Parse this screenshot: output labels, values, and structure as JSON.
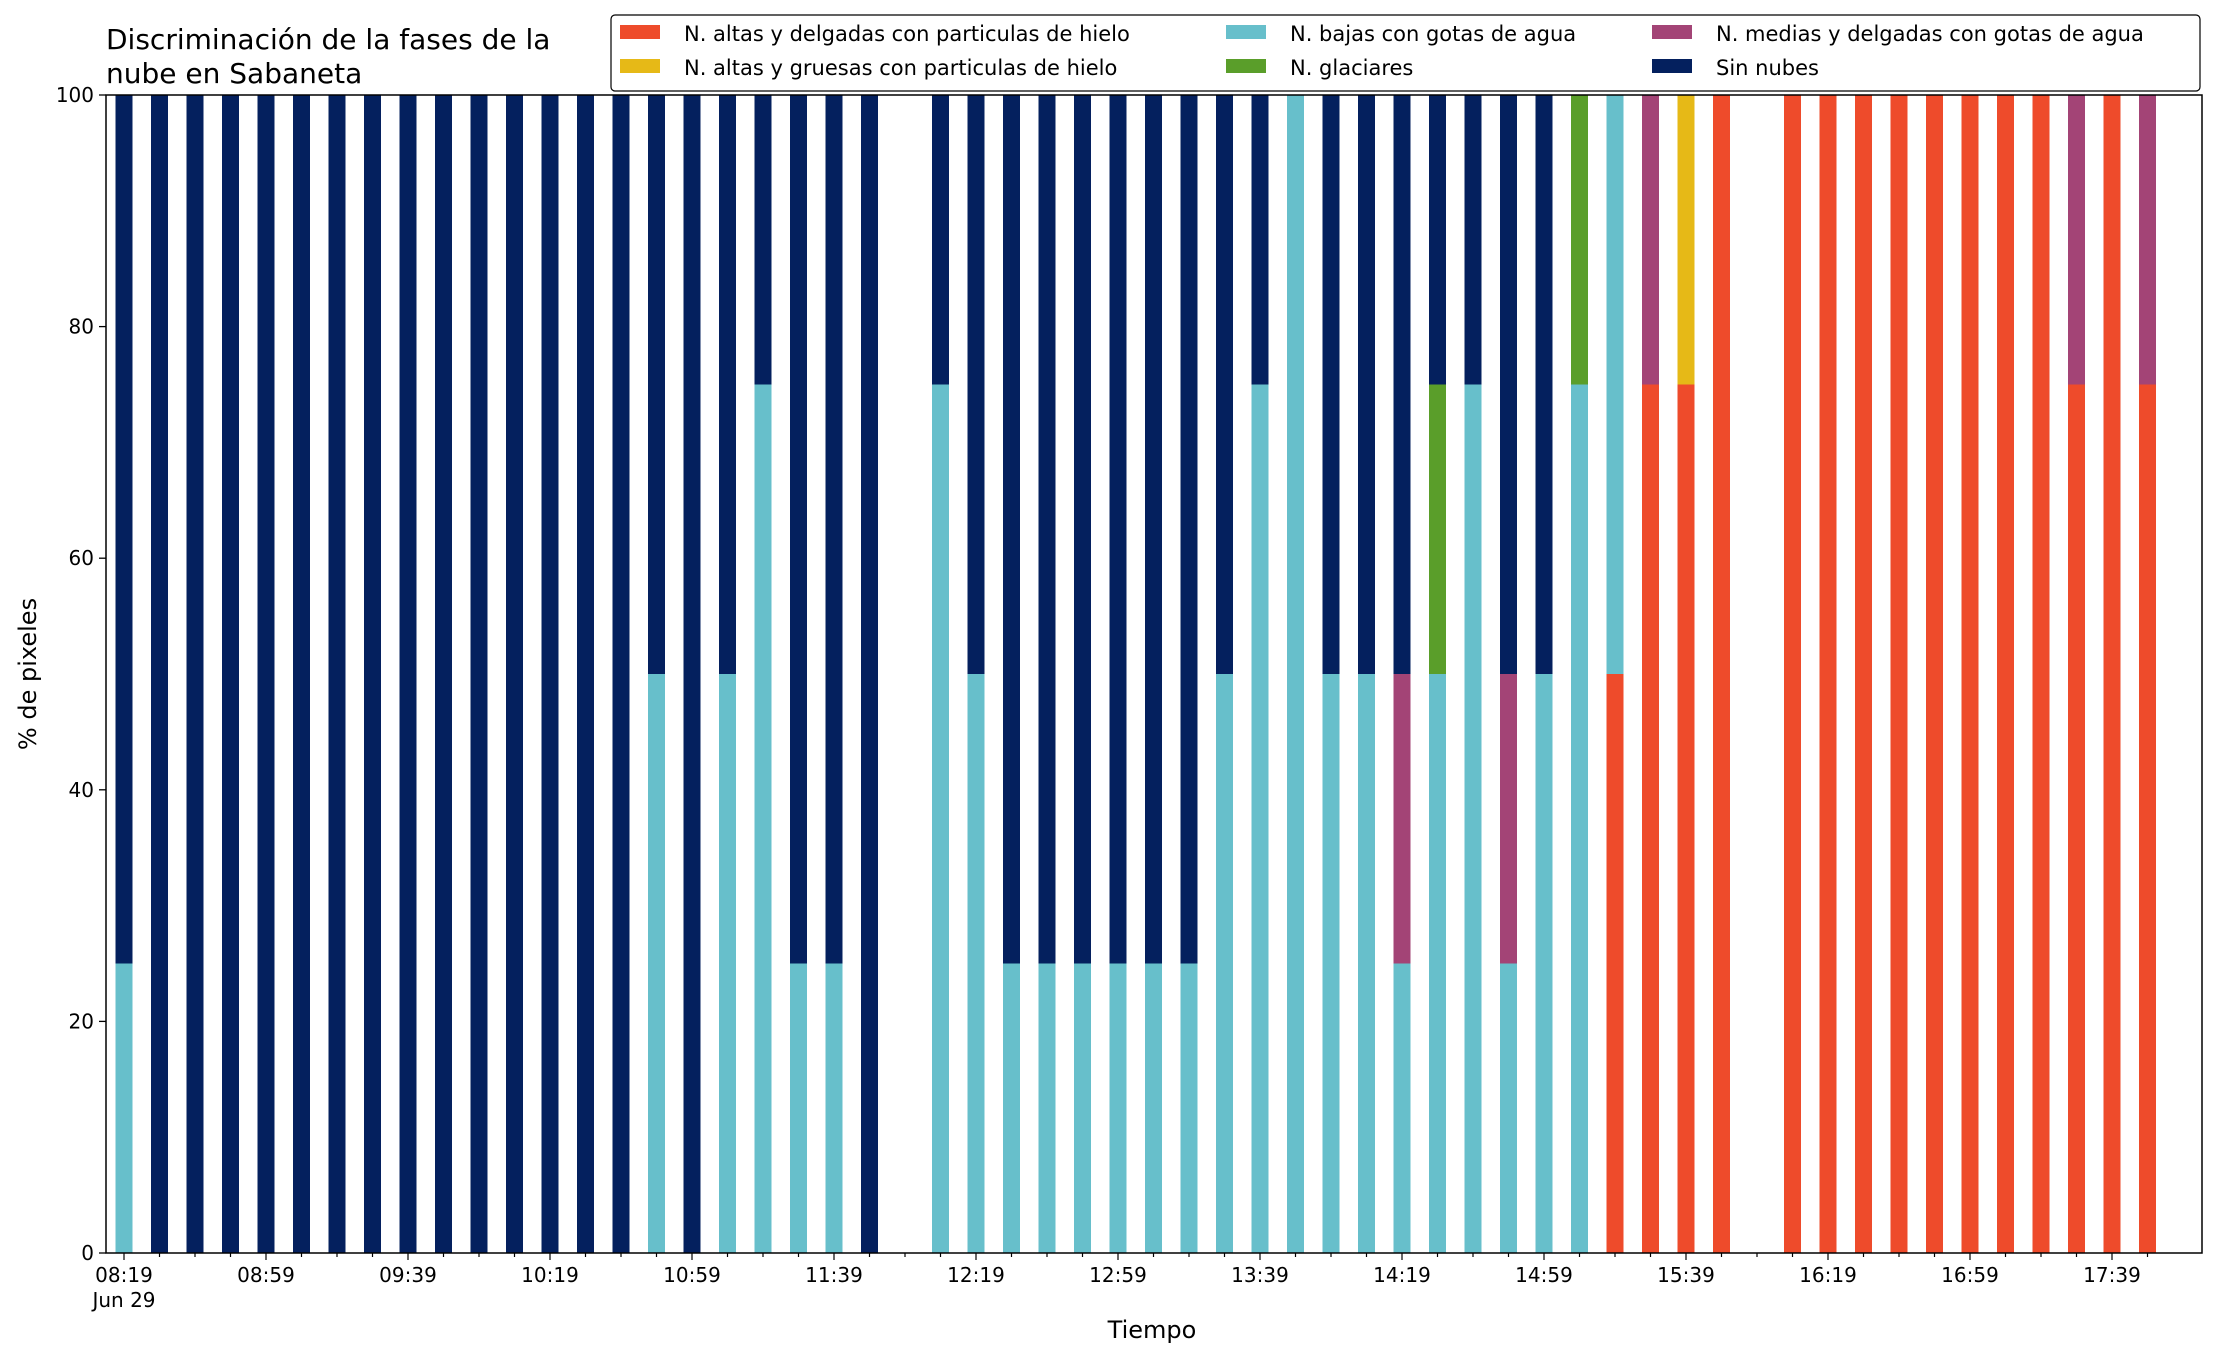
{
  "chart_data": {
    "type": "bar",
    "stacked": true,
    "title_lines": [
      "Discriminación de la fases de la",
      "nube en Sabaneta"
    ],
    "xlabel": "Tiempo",
    "ylabel": "% de pixeles",
    "ylim": [
      0,
      100
    ],
    "yticks": [
      0,
      20,
      40,
      60,
      80,
      100
    ],
    "grid": false,
    "legend_position": "top-right",
    "x_start": "08:19",
    "x_step_minutes": 10,
    "x_count": 58,
    "xtick_labels": [
      {
        "index": 0,
        "label": "08:19",
        "sublabel": "Jun 29"
      },
      {
        "index": 4,
        "label": "08:59"
      },
      {
        "index": 8,
        "label": "09:39"
      },
      {
        "index": 12,
        "label": "10:19"
      },
      {
        "index": 16,
        "label": "10:59"
      },
      {
        "index": 20,
        "label": "11:39"
      },
      {
        "index": 24,
        "label": "12:19"
      },
      {
        "index": 28,
        "label": "12:59"
      },
      {
        "index": 32,
        "label": "13:39"
      },
      {
        "index": 36,
        "label": "14:19"
      },
      {
        "index": 40,
        "label": "14:59"
      },
      {
        "index": 44,
        "label": "15:39"
      },
      {
        "index": 48,
        "label": "16:19"
      },
      {
        "index": 52,
        "label": "16:59"
      },
      {
        "index": 56,
        "label": "17:39"
      }
    ],
    "legend_order": [
      "altas_delgadas",
      "altas_gruesas",
      "bajas",
      "glaciares",
      "medias",
      "sin_nubes"
    ],
    "series": [
      {
        "key": "altas_delgadas",
        "name": "N. altas y delgadas con particulas de hielo",
        "color": "#ee4b2b",
        "values": [
          0,
          0,
          0,
          0,
          0,
          0,
          0,
          0,
          0,
          0,
          0,
          0,
          0,
          0,
          0,
          0,
          0,
          0,
          0,
          0,
          0,
          0,
          0,
          0,
          0,
          0,
          0,
          0,
          0,
          0,
          0,
          0,
          0,
          0,
          0,
          0,
          0,
          0,
          0,
          0,
          0,
          0,
          50,
          75,
          75,
          100,
          null,
          100,
          100,
          100,
          100,
          100,
          100,
          100,
          100,
          75,
          100,
          75
        ]
      },
      {
        "key": "altas_gruesas",
        "name": "N. altas y gruesas con particulas de hielo",
        "color": "#e6b917",
        "values": [
          0,
          0,
          0,
          0,
          0,
          0,
          0,
          0,
          0,
          0,
          0,
          0,
          0,
          0,
          0,
          0,
          0,
          0,
          0,
          0,
          0,
          0,
          0,
          0,
          0,
          0,
          0,
          0,
          0,
          0,
          0,
          0,
          0,
          0,
          0,
          0,
          0,
          0,
          0,
          0,
          0,
          0,
          0,
          0,
          25,
          0,
          null,
          0,
          0,
          0,
          0,
          0,
          0,
          0,
          0,
          0,
          0,
          0
        ]
      },
      {
        "key": "bajas",
        "name": "N. bajas con gotas de agua",
        "color": "#67bfcb",
        "values": [
          25,
          0,
          0,
          0,
          0,
          0,
          0,
          0,
          0,
          0,
          0,
          0,
          0,
          0,
          0,
          50,
          0,
          50,
          75,
          25,
          25,
          0,
          null,
          75,
          50,
          25,
          25,
          25,
          25,
          25,
          25,
          50,
          75,
          100,
          50,
          50,
          25,
          50,
          75,
          25,
          50,
          75,
          50,
          0,
          0,
          0,
          null,
          0,
          0,
          0,
          0,
          0,
          0,
          0,
          0,
          0,
          0,
          0
        ]
      },
      {
        "key": "glaciares",
        "name": "N. glaciares",
        "color": "#5a9e2a",
        "values": [
          0,
          0,
          0,
          0,
          0,
          0,
          0,
          0,
          0,
          0,
          0,
          0,
          0,
          0,
          0,
          0,
          0,
          0,
          0,
          0,
          0,
          0,
          null,
          0,
          0,
          0,
          0,
          0,
          0,
          0,
          0,
          0,
          0,
          0,
          0,
          0,
          0,
          25,
          0,
          0,
          0,
          25,
          0,
          0,
          0,
          0,
          null,
          0,
          0,
          0,
          0,
          0,
          0,
          0,
          0,
          0,
          0,
          0
        ]
      },
      {
        "key": "medias",
        "name": "N. medias y delgadas con gotas de agua",
        "color": "#a34476",
        "values": [
          0,
          0,
          0,
          0,
          0,
          0,
          0,
          0,
          0,
          0,
          0,
          0,
          0,
          0,
          0,
          0,
          0,
          0,
          0,
          0,
          0,
          0,
          null,
          0,
          0,
          0,
          0,
          0,
          0,
          0,
          0,
          0,
          0,
          0,
          0,
          0,
          25,
          0,
          0,
          25,
          0,
          0,
          0,
          25,
          0,
          0,
          null,
          0,
          0,
          0,
          0,
          0,
          0,
          0,
          0,
          25,
          0,
          25
        ]
      },
      {
        "key": "sin_nubes",
        "name": "Sin nubes",
        "color": "#04205e",
        "values": [
          75,
          100,
          100,
          100,
          100,
          100,
          100,
          100,
          100,
          100,
          100,
          100,
          100,
          100,
          100,
          50,
          100,
          50,
          25,
          75,
          75,
          100,
          null,
          25,
          50,
          75,
          75,
          75,
          75,
          75,
          75,
          50,
          25,
          0,
          50,
          50,
          50,
          25,
          25,
          50,
          50,
          0,
          0,
          0,
          0,
          0,
          null,
          0,
          0,
          0,
          0,
          0,
          0,
          0,
          0,
          0,
          0,
          0
        ]
      }
    ]
  }
}
